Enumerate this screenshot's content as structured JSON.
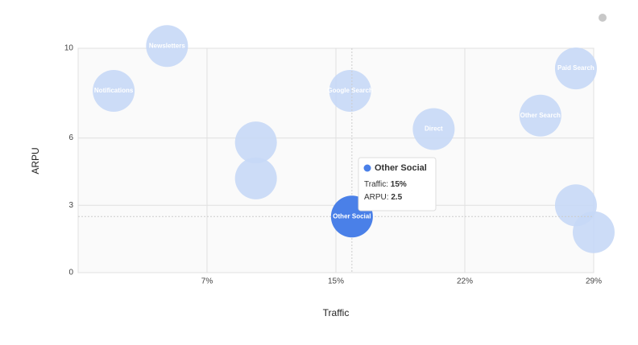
{
  "chart_data": {
    "type": "scatter",
    "xlabel": "Traffic",
    "ylabel": "ARPU",
    "xlim": [
      0,
      29
    ],
    "ylim": [
      0,
      10
    ],
    "xticks": [
      {
        "value": 7.25,
        "label": "7%"
      },
      {
        "value": 14.5,
        "label": "15%"
      },
      {
        "value": 21.75,
        "label": "22%"
      },
      {
        "value": 29,
        "label": "29%"
      }
    ],
    "yticks": [
      0,
      3,
      6,
      10
    ],
    "grid": true,
    "x": [
      5,
      2,
      15.3,
      28,
      26,
      20,
      10,
      10,
      28,
      29,
      15.4
    ],
    "series": [
      {
        "color": "#c6d8f6",
        "highlight_color": "#4a80e8",
        "values": [
          10.1,
          8.1,
          8.1,
          9.1,
          7,
          6.4,
          5.8,
          4.2,
          3,
          1.8,
          2.5
        ],
        "labels": [
          "Newsletters",
          "Notifications",
          "Google Search",
          "Paid Search",
          "Other Search",
          "Direct",
          null,
          null,
          null,
          null,
          "Other Social"
        ]
      }
    ],
    "tooltip": {
      "title": "Other Social",
      "lines": [
        {
          "label": "Traffic: ",
          "value": "15%"
        },
        {
          "label": "ARPU: ",
          "value": "2.5"
        }
      ]
    }
  }
}
